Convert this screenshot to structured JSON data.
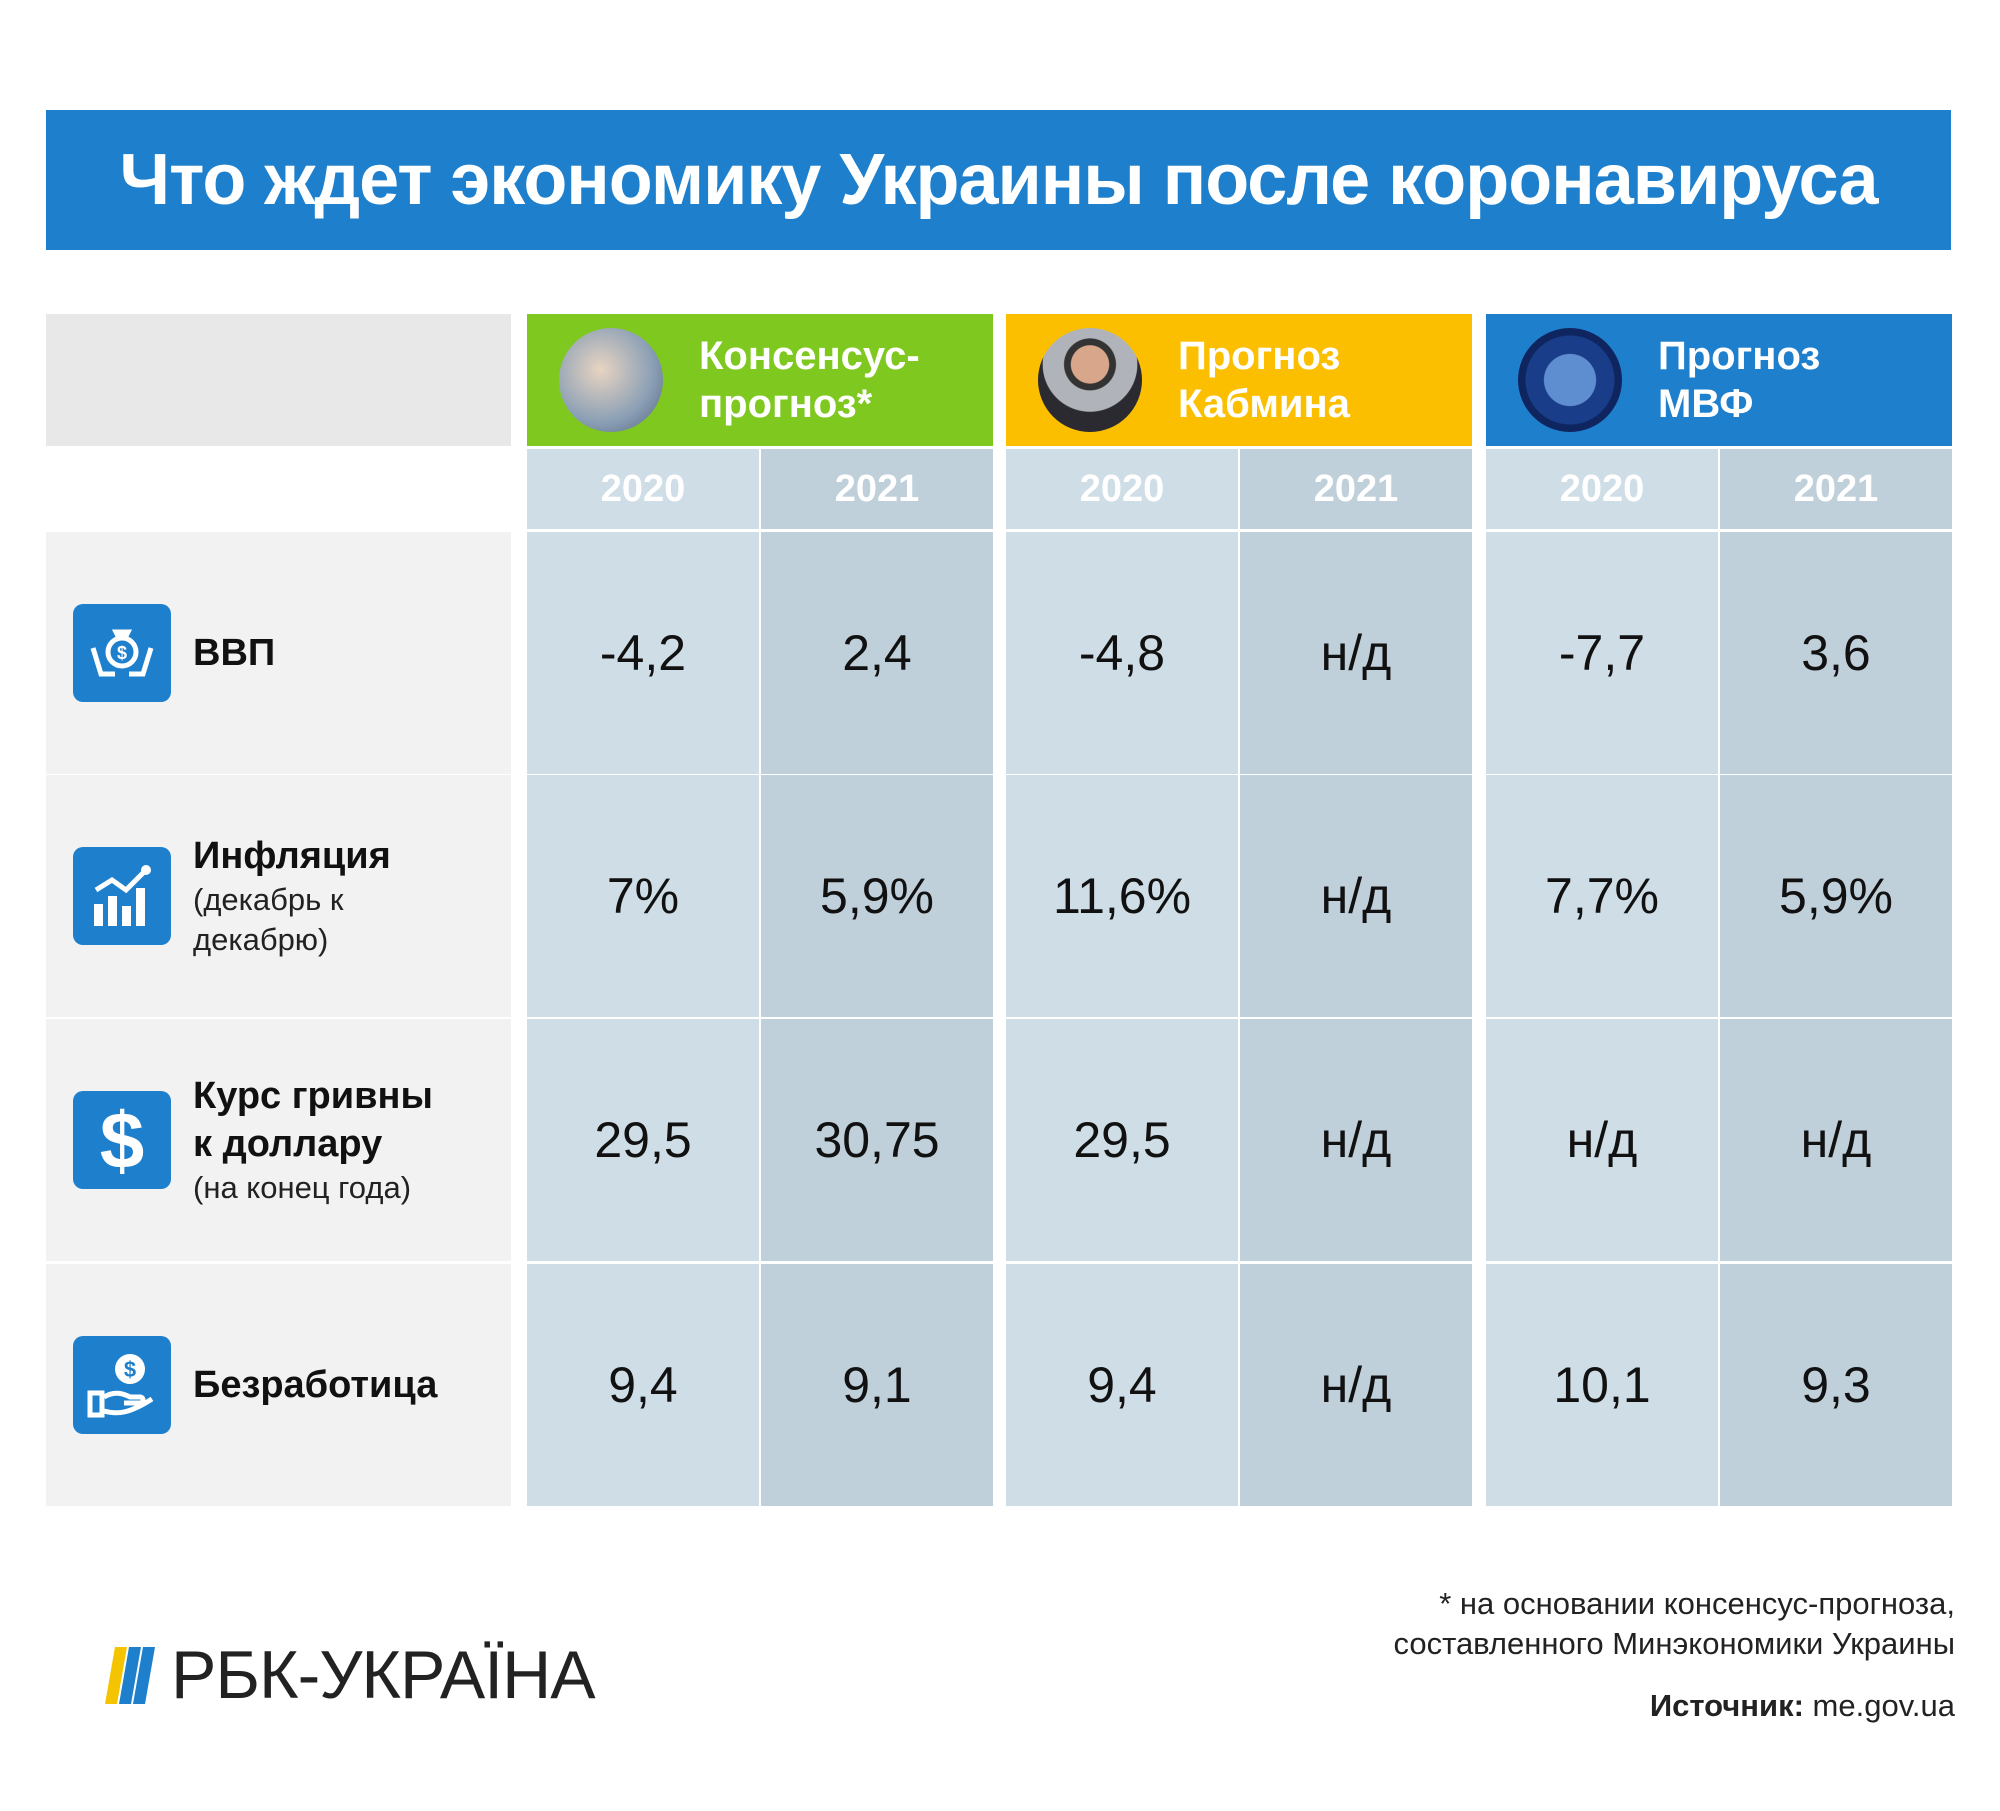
{
  "title": "Что ждет экономику Украины после коронавируса",
  "colors": {
    "title_bg": "#1e80cc",
    "consensus": "#7ec820",
    "cabinet": "#fbbf00",
    "imf": "#1e80cc"
  },
  "sources": [
    {
      "label": "Консенсус-прогноз*",
      "image": "handshake-photo"
    },
    {
      "label": "Прогноз Кабмина",
      "image": "minister-portrait"
    },
    {
      "label": "Прогноз МВФ",
      "image": "imf-seal"
    }
  ],
  "years": [
    "2020",
    "2021",
    "2020",
    "2021",
    "2020",
    "2021"
  ],
  "rows": [
    {
      "title": "ВВП",
      "subtitle": "",
      "icon": "money-bag-hands-icon",
      "values": [
        "-4,2",
        "2,4",
        "-4,8",
        "н/д",
        "-7,7",
        "3,6"
      ]
    },
    {
      "title": "Инфляция",
      "subtitle": "(декабрь к декабрю)",
      "icon": "bar-chart-growth-icon",
      "values": [
        "7%",
        "5,9%",
        "11,6%",
        "н/д",
        "7,7%",
        "5,9%"
      ]
    },
    {
      "title": "Курс гривны к доллару",
      "subtitle": "(на конец года)",
      "icon": "dollar-icon",
      "values": [
        "29,5",
        "30,75",
        "29,5",
        "н/д",
        "н/д",
        "н/д"
      ]
    },
    {
      "title": "Безработица",
      "subtitle": "",
      "icon": "hand-coin-icon",
      "values": [
        "9,4",
        "9,1",
        "9,4",
        "н/д",
        "10,1",
        "9,3"
      ]
    }
  ],
  "footer": {
    "logo": "РБК-УКРАЇНА",
    "note_line1": "* на основании консенсус-прогноза,",
    "note_line2": "составленного Минэкономики Украины",
    "source_label": "Источник:",
    "source_value": "me.gov.ua"
  }
}
